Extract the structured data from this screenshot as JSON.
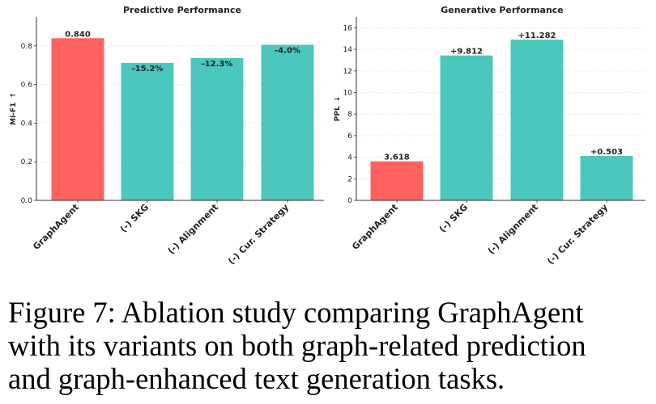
{
  "chart_data": [
    {
      "type": "bar",
      "title": "Predictive Performance",
      "ylabel": "Mi-F1",
      "ylabel_arrow": "↑",
      "categories": [
        "GraphAgent",
        "(-) SKG",
        "(-) Alignment",
        "(-) Cur. Strategy"
      ],
      "values": [
        0.84,
        0.712,
        0.737,
        0.806
      ],
      "labels": [
        "0.840",
        "-15.2%",
        "-12.3%",
        "-4.0%"
      ],
      "label_inside": [
        false,
        true,
        true,
        true
      ],
      "ylim": [
        0,
        0.95
      ],
      "yticks": [
        0.0,
        0.2,
        0.4,
        0.6,
        0.8
      ],
      "ytick_labels": [
        "0.0",
        "0.2",
        "0.4",
        "0.6",
        "0.8"
      ],
      "grid": true,
      "colors": [
        "#FF6161",
        "#4BC7BD",
        "#4BC7BD",
        "#4BC7BD"
      ]
    },
    {
      "type": "bar",
      "title": "Generative Performance",
      "ylabel": "PPL",
      "ylabel_arrow": "↓",
      "categories": [
        "GraphAgent",
        "(-) SKG",
        "(-) Alignment",
        "(-) Cur. Strategy"
      ],
      "values": [
        3.618,
        13.43,
        14.9,
        4.121
      ],
      "labels": [
        "3.618",
        "+9.812",
        "+11.282",
        "+0.503"
      ],
      "label_inside": [
        false,
        false,
        false,
        false
      ],
      "ylim": [
        0,
        17
      ],
      "yticks": [
        0,
        2,
        4,
        6,
        8,
        10,
        12,
        14,
        16
      ],
      "ytick_labels": [
        "0",
        "2",
        "4",
        "6",
        "8",
        "10",
        "12",
        "14",
        "16"
      ],
      "grid": true,
      "colors": [
        "#FF6161",
        "#4BC7BD",
        "#4BC7BD",
        "#4BC7BD"
      ]
    }
  ],
  "caption": {
    "lines": [
      "Figure 7: Ablation study comparing GraphAgent",
      "with its variants on both graph-related prediction",
      "and graph-enhanced text generation tasks."
    ]
  }
}
